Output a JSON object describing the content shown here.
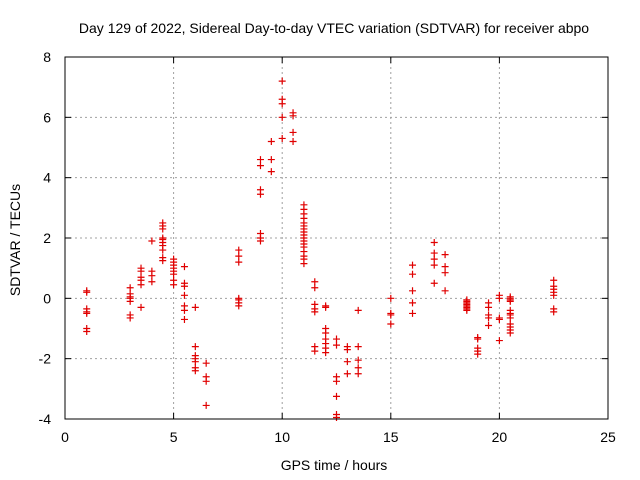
{
  "chart_data": {
    "type": "scatter",
    "title": "Day 129 of 2022, Sidereal Day-to-day VTEC variation (SDTVAR) for receiver abpo",
    "xlabel": "GPS time / hours",
    "ylabel": "SDTVAR / TECUs",
    "xlim": [
      0,
      25
    ],
    "ylim": [
      -4,
      8
    ],
    "xticks": [
      0,
      5,
      10,
      15,
      20,
      25
    ],
    "yticks": [
      -4,
      -2,
      0,
      2,
      4,
      6,
      8
    ],
    "xtick_labels": [
      "0",
      "5",
      "10",
      "15",
      "20",
      "25"
    ],
    "ytick_labels": [
      "-4",
      "-2",
      "0",
      "2",
      "4",
      "6",
      "8"
    ],
    "grid": true,
    "marker": "+",
    "color": "#e00000",
    "series": [
      {
        "name": "SDTVAR",
        "points": [
          [
            1.0,
            0.2
          ],
          [
            1.0,
            0.25
          ],
          [
            1.0,
            -0.35
          ],
          [
            1.0,
            -0.45
          ],
          [
            1.0,
            -0.5
          ],
          [
            1.0,
            -1.0
          ],
          [
            1.0,
            -1.1
          ],
          [
            3.0,
            0.35
          ],
          [
            3.0,
            0.15
          ],
          [
            3.0,
            0.05
          ],
          [
            3.0,
            0.0
          ],
          [
            3.0,
            -0.1
          ],
          [
            3.0,
            -0.55
          ],
          [
            3.0,
            -0.65
          ],
          [
            3.5,
            1.0
          ],
          [
            3.5,
            0.9
          ],
          [
            3.5,
            0.7
          ],
          [
            3.5,
            0.6
          ],
          [
            3.5,
            0.45
          ],
          [
            3.5,
            -0.3
          ],
          [
            4.0,
            1.9
          ],
          [
            4.0,
            0.9
          ],
          [
            4.0,
            0.75
          ],
          [
            4.0,
            0.55
          ],
          [
            4.5,
            2.5
          ],
          [
            4.5,
            2.4
          ],
          [
            4.5,
            2.3
          ],
          [
            4.5,
            2.0
          ],
          [
            4.5,
            1.95
          ],
          [
            4.5,
            1.85
          ],
          [
            4.5,
            1.75
          ],
          [
            4.5,
            1.6
          ],
          [
            4.5,
            1.35
          ],
          [
            4.5,
            1.25
          ],
          [
            5.0,
            1.3
          ],
          [
            5.0,
            1.2
          ],
          [
            5.0,
            1.1
          ],
          [
            5.0,
            1.0
          ],
          [
            5.0,
            0.9
          ],
          [
            5.0,
            0.8
          ],
          [
            5.0,
            0.6
          ],
          [
            5.0,
            0.45
          ],
          [
            5.5,
            1.05
          ],
          [
            5.5,
            0.5
          ],
          [
            5.5,
            0.4
          ],
          [
            5.5,
            0.1
          ],
          [
            5.5,
            -0.25
          ],
          [
            5.5,
            -0.4
          ],
          [
            5.5,
            -0.7
          ],
          [
            6.0,
            -0.3
          ],
          [
            6.0,
            -1.6
          ],
          [
            6.0,
            -1.9
          ],
          [
            6.0,
            -2.0
          ],
          [
            6.0,
            -2.1
          ],
          [
            6.0,
            -2.3
          ],
          [
            6.0,
            -2.4
          ],
          [
            6.5,
            -2.15
          ],
          [
            6.5,
            -2.6
          ],
          [
            6.5,
            -2.75
          ],
          [
            6.5,
            -3.55
          ],
          [
            8.0,
            1.6
          ],
          [
            8.0,
            1.4
          ],
          [
            8.0,
            1.2
          ],
          [
            8.0,
            0.0
          ],
          [
            8.0,
            -0.05
          ],
          [
            8.0,
            -0.15
          ],
          [
            8.0,
            -0.25
          ],
          [
            9.0,
            4.6
          ],
          [
            9.0,
            4.4
          ],
          [
            9.0,
            3.6
          ],
          [
            9.0,
            3.45
          ],
          [
            9.0,
            2.15
          ],
          [
            9.0,
            2.0
          ],
          [
            9.0,
            1.9
          ],
          [
            9.5,
            5.2
          ],
          [
            9.5,
            4.6
          ],
          [
            9.5,
            4.2
          ],
          [
            10.0,
            7.2
          ],
          [
            10.0,
            6.6
          ],
          [
            10.0,
            6.45
          ],
          [
            10.0,
            6.0
          ],
          [
            10.0,
            5.3
          ],
          [
            10.5,
            6.15
          ],
          [
            10.5,
            6.05
          ],
          [
            10.5,
            5.5
          ],
          [
            10.5,
            5.2
          ],
          [
            11.0,
            3.1
          ],
          [
            11.0,
            2.95
          ],
          [
            11.0,
            2.8
          ],
          [
            11.0,
            2.65
          ],
          [
            11.0,
            2.5
          ],
          [
            11.0,
            2.4
          ],
          [
            11.0,
            2.3
          ],
          [
            11.0,
            2.2
          ],
          [
            11.0,
            2.1
          ],
          [
            11.0,
            2.0
          ],
          [
            11.0,
            1.9
          ],
          [
            11.0,
            1.8
          ],
          [
            11.0,
            1.7
          ],
          [
            11.0,
            1.55
          ],
          [
            11.0,
            1.4
          ],
          [
            11.0,
            1.3
          ],
          [
            11.0,
            1.15
          ],
          [
            11.5,
            0.55
          ],
          [
            11.5,
            0.35
          ],
          [
            11.5,
            -0.2
          ],
          [
            11.5,
            -0.35
          ],
          [
            11.5,
            -0.45
          ],
          [
            11.5,
            -1.6
          ],
          [
            11.5,
            -1.75
          ],
          [
            12.0,
            -0.25
          ],
          [
            12.0,
            -0.3
          ],
          [
            12.0,
            -1.0
          ],
          [
            12.0,
            -1.15
          ],
          [
            12.0,
            -1.35
          ],
          [
            12.0,
            -1.5
          ],
          [
            12.0,
            -1.65
          ],
          [
            12.0,
            -1.8
          ],
          [
            12.5,
            -1.35
          ],
          [
            12.5,
            -1.55
          ],
          [
            12.5,
            -2.6
          ],
          [
            12.5,
            -2.75
          ],
          [
            12.5,
            -3.25
          ],
          [
            12.5,
            -3.85
          ],
          [
            12.5,
            -3.95
          ],
          [
            13.0,
            -1.6
          ],
          [
            13.0,
            -1.7
          ],
          [
            13.0,
            -2.1
          ],
          [
            13.0,
            -2.5
          ],
          [
            13.5,
            -0.4
          ],
          [
            13.5,
            -1.6
          ],
          [
            13.5,
            -2.05
          ],
          [
            13.5,
            -2.3
          ],
          [
            13.5,
            -2.5
          ],
          [
            15.0,
            0.0
          ],
          [
            15.0,
            -0.5
          ],
          [
            15.0,
            -0.55
          ],
          [
            15.0,
            -0.85
          ],
          [
            16.0,
            1.1
          ],
          [
            16.0,
            0.8
          ],
          [
            16.0,
            0.25
          ],
          [
            16.0,
            -0.15
          ],
          [
            16.0,
            -0.5
          ],
          [
            17.0,
            1.85
          ],
          [
            17.0,
            1.5
          ],
          [
            17.0,
            1.3
          ],
          [
            17.0,
            1.1
          ],
          [
            17.0,
            0.5
          ],
          [
            17.5,
            1.45
          ],
          [
            17.5,
            1.05
          ],
          [
            17.5,
            0.85
          ],
          [
            17.5,
            0.25
          ],
          [
            18.5,
            -0.05
          ],
          [
            18.5,
            -0.1
          ],
          [
            18.5,
            -0.15
          ],
          [
            18.5,
            -0.2
          ],
          [
            18.5,
            -0.25
          ],
          [
            18.5,
            -0.3
          ],
          [
            18.5,
            -0.35
          ],
          [
            18.5,
            -0.4
          ],
          [
            19.0,
            -1.3
          ],
          [
            19.0,
            -1.35
          ],
          [
            19.0,
            -1.65
          ],
          [
            19.0,
            -1.75
          ],
          [
            19.0,
            -1.85
          ],
          [
            19.5,
            -0.15
          ],
          [
            19.5,
            -0.3
          ],
          [
            19.5,
            -0.55
          ],
          [
            19.5,
            -0.65
          ],
          [
            19.5,
            -0.9
          ],
          [
            20.0,
            0.1
          ],
          [
            20.0,
            0.0
          ],
          [
            20.0,
            -0.65
          ],
          [
            20.0,
            -0.7
          ],
          [
            20.0,
            -1.4
          ],
          [
            20.5,
            0.05
          ],
          [
            20.5,
            0.0
          ],
          [
            20.5,
            -0.05
          ],
          [
            20.5,
            -0.1
          ],
          [
            20.5,
            -0.4
          ],
          [
            20.5,
            -0.5
          ],
          [
            20.5,
            -0.55
          ],
          [
            20.5,
            -0.65
          ],
          [
            20.5,
            -0.85
          ],
          [
            20.5,
            -0.95
          ],
          [
            20.5,
            -1.05
          ],
          [
            20.5,
            -1.15
          ],
          [
            22.5,
            0.6
          ],
          [
            22.5,
            0.4
          ],
          [
            22.5,
            0.3
          ],
          [
            22.5,
            0.2
          ],
          [
            22.5,
            0.1
          ],
          [
            22.5,
            -0.35
          ],
          [
            22.5,
            -0.45
          ]
        ]
      }
    ]
  }
}
